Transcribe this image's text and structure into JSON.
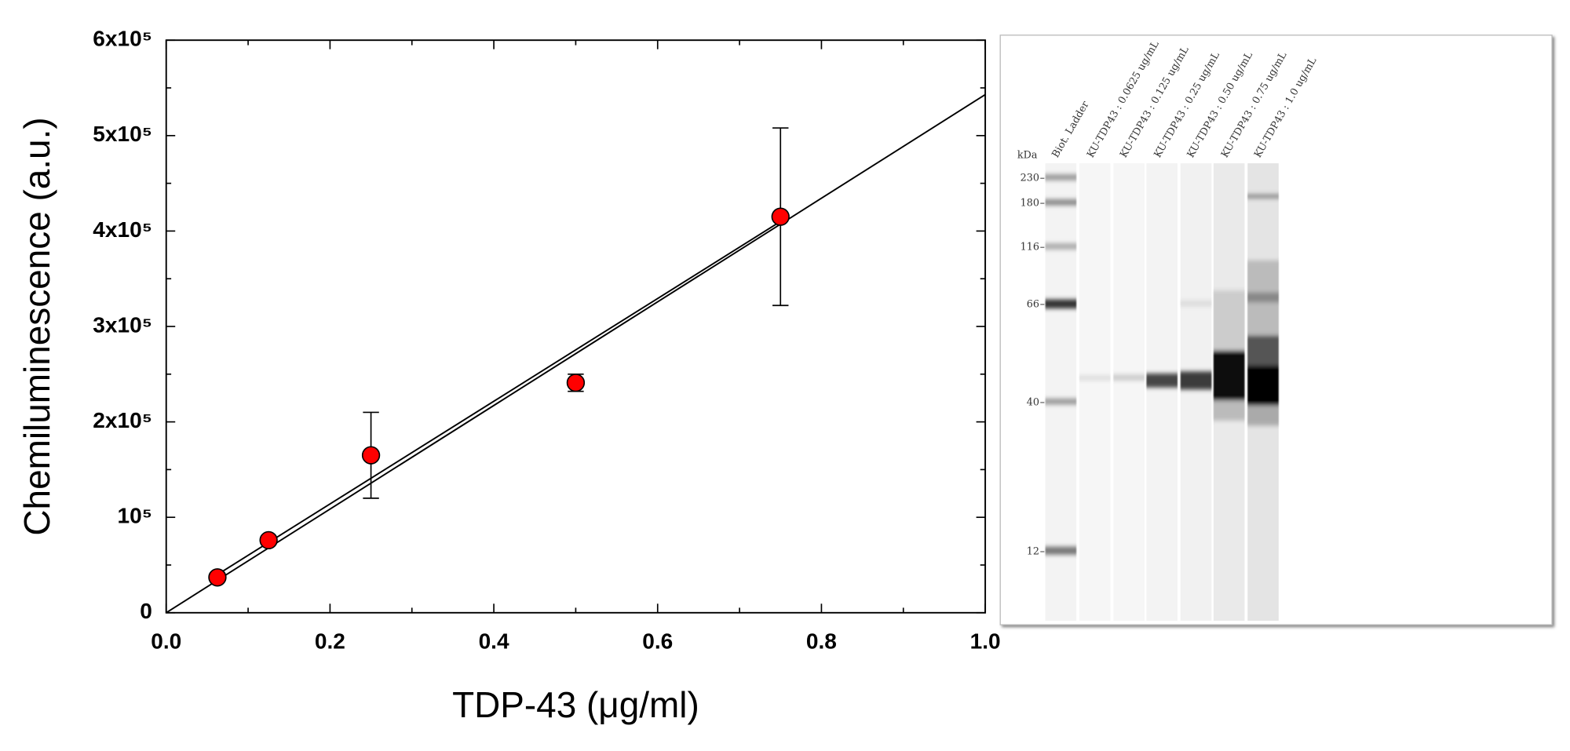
{
  "chart_data": {
    "type": "scatter",
    "xlabel": "TDP-43 (μg/ml)",
    "ylabel": "Chemiluminescence (a.u.)",
    "xlim": [
      0,
      1
    ],
    "ylim": [
      0,
      600000
    ],
    "xticks": [
      {
        "value": 0,
        "label": "0.0"
      },
      0.2,
      0.4,
      0.6,
      0.8,
      {
        "value": 1,
        "label": "1.0"
      }
    ],
    "xminorticks": [
      0.1,
      0.3,
      0.5,
      0.7,
      0.9
    ],
    "yticks": [
      0,
      {
        "value": 100000,
        "label": "10⁵"
      },
      {
        "value": 200000,
        "label": "2x10⁵"
      },
      {
        "value": 300000,
        "label": "3x10⁵"
      },
      {
        "value": 400000,
        "label": "4x10⁵"
      },
      {
        "value": 500000,
        "label": "5x10⁵"
      },
      {
        "value": 600000,
        "label": "6x10⁵"
      }
    ],
    "yminorticks": [
      50000,
      150000,
      250000,
      350000,
      450000,
      550000
    ],
    "series": [
      {
        "color": "#ff0000",
        "x": [
          0.0625,
          0.125,
          0.25,
          0.5,
          0.75
        ],
        "values": [
          37000,
          76000,
          165000,
          241000,
          415000
        ],
        "errors": [
          3000,
          4000,
          45000,
          9000,
          93000
        ]
      }
    ],
    "lines": [
      {
        "color": "#000000",
        "x": [
          0,
          1
        ],
        "values": [
          0,
          543000
        ]
      },
      {
        "color": "#000000",
        "x": [
          0.0625,
          0.75
        ],
        "values": [
          40000,
          410000
        ]
      }
    ]
  },
  "gel": {
    "unit_label": "kDa",
    "lane_labels": [
      "Biot. Ladder",
      "KU-TDP43 : 0.0625 ug/mL",
      "KU-TDP43 : 0.125 ug/mL",
      "KU-TDP43 : 0.25 ug/mL",
      "KU-TDP43 : 0.50 ug/mL",
      "KU-TDP43 : 0.75 ug/mL",
      "KU-TDP43 : 1.0 ug/mL"
    ],
    "markers": [
      "230",
      "180",
      "116",
      "66",
      "40",
      "12"
    ]
  }
}
